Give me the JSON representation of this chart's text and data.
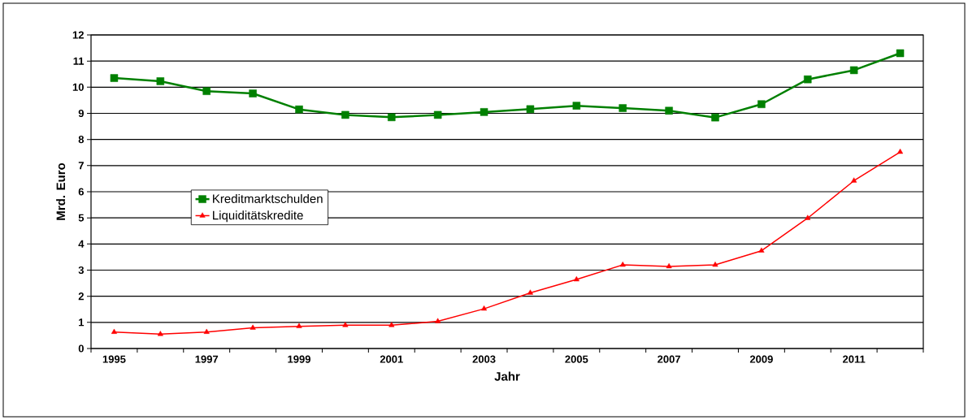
{
  "chart_data": {
    "type": "line",
    "xlabel": "Jahr",
    "ylabel": "Mrd. Euro",
    "categories": [
      "1995",
      null,
      "1997",
      null,
      "1999",
      null,
      "2001",
      null,
      "2003",
      null,
      "2005",
      null,
      "2007",
      null,
      "2009",
      null,
      "2011",
      null
    ],
    "series": [
      {
        "name": "Kreditmarktschulden",
        "color": "#008000",
        "marker": "square",
        "values": [
          10.35,
          10.23,
          9.85,
          9.76,
          9.15,
          8.94,
          8.85,
          8.94,
          9.05,
          9.16,
          9.29,
          9.2,
          9.1,
          8.84,
          9.35,
          10.3,
          10.65,
          11.3
        ]
      },
      {
        "name": "Liquiditätskredite",
        "color": "#ff0000",
        "marker": "triangle",
        "values": [
          0.63,
          0.55,
          0.63,
          0.79,
          0.85,
          0.89,
          0.89,
          1.04,
          1.52,
          2.13,
          2.64,
          3.2,
          3.14,
          3.2,
          3.74,
          4.99,
          6.42,
          7.52
        ]
      }
    ],
    "ylim": [
      0,
      12
    ],
    "yticks": [
      0,
      1,
      2,
      3,
      4,
      5,
      6,
      7,
      8,
      9,
      10,
      11,
      12
    ],
    "grid": "y",
    "legend": "left",
    "line_style": "solid"
  }
}
